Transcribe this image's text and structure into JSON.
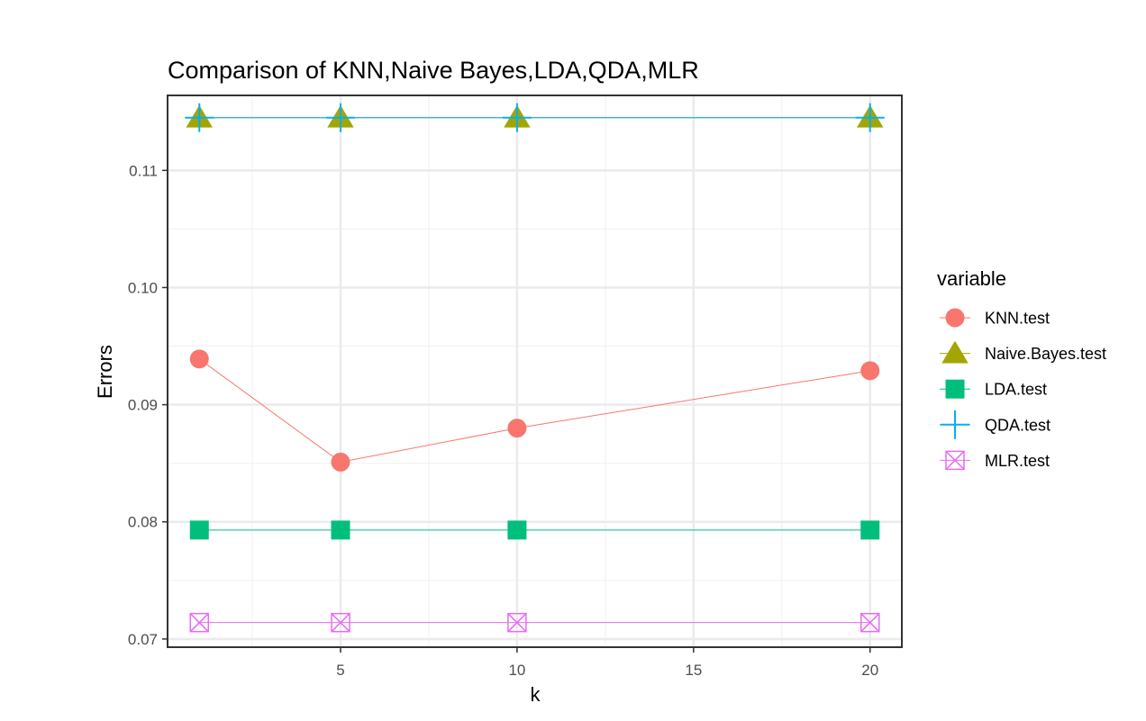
{
  "chart_data": {
    "type": "line",
    "title": "Comparison of KNN,Naive Bayes,LDA,QDA,MLR",
    "xlabel": "k",
    "ylabel": "Errors",
    "x": [
      1,
      5,
      10,
      20
    ],
    "xlim": [
      0.1,
      20.9
    ],
    "ylim": [
      0.0693,
      0.1164
    ],
    "xticks": [
      5,
      10,
      15,
      20
    ],
    "xtick_labels": [
      "5",
      "10",
      "15",
      "20"
    ],
    "yticks": [
      0.07,
      0.08,
      0.09,
      0.1,
      0.11
    ],
    "ytick_labels": [
      "0.07",
      "0.08",
      "0.09",
      "0.10",
      "0.11"
    ],
    "grid": true,
    "legend_title": "variable",
    "legend_position": "right",
    "series": [
      {
        "name": "KNN.test",
        "shape": "circle",
        "color": "#F8766D",
        "values": [
          0.0939,
          0.0851,
          0.088,
          0.0929
        ]
      },
      {
        "name": "Naive.Bayes.test",
        "shape": "triangle",
        "color": "#A3A500",
        "values": [
          0.1145,
          0.1145,
          0.1145,
          0.1145
        ]
      },
      {
        "name": "LDA.test",
        "shape": "square",
        "color": "#00BF7D",
        "values": [
          0.0793,
          0.0793,
          0.0793,
          0.0793
        ]
      },
      {
        "name": "QDA.test",
        "shape": "plus",
        "color": "#00B0F6",
        "values": [
          0.1145,
          0.1145,
          0.1145,
          0.1145
        ]
      },
      {
        "name": "MLR.test",
        "shape": "square-cross",
        "color": "#E76BF3",
        "values": [
          0.0714,
          0.0714,
          0.0714,
          0.0714
        ]
      }
    ]
  }
}
